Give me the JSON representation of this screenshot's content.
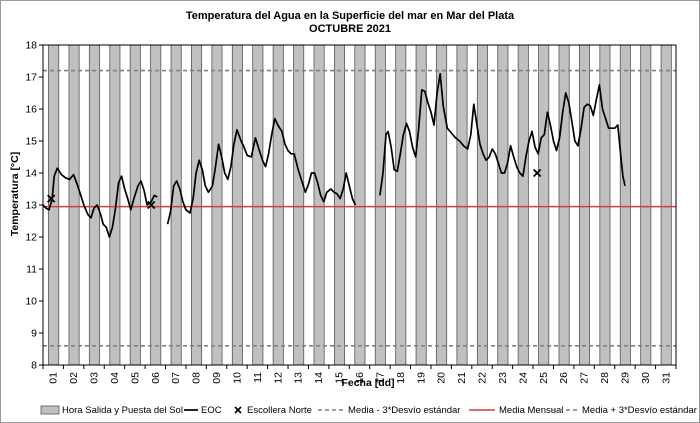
{
  "chart_data": {
    "type": "line",
    "title": "Temperatura del Agua en la Superficie del mar en Mar del Plata",
    "subtitle": "OCTUBRE 2021",
    "xlabel": "Fecha [dd]",
    "ylabel": "Temperatura [°C]",
    "ylim": [
      8,
      18
    ],
    "yticks": [
      "8",
      "9",
      "10",
      "11",
      "12",
      "13",
      "14",
      "15",
      "16",
      "17",
      "18"
    ],
    "xlim": [
      1,
      32
    ],
    "categories": [
      "01",
      "02",
      "03",
      "04",
      "05",
      "06",
      "07",
      "08",
      "09",
      "10",
      "11",
      "12",
      "13",
      "14",
      "15",
      "16",
      "17",
      "18",
      "19",
      "20",
      "21",
      "22",
      "23",
      "24",
      "25",
      "26",
      "27",
      "28",
      "29",
      "30",
      "31"
    ],
    "daylight_bars": {
      "start": 0.27,
      "end": 0.77
    },
    "colors": {
      "eoc": "#000000",
      "media_mensual": "#d04040",
      "desvio": "#808080",
      "daylight_fill": "#c0c0c0",
      "daylight_stroke": "#555555"
    },
    "media_mensual": 12.95,
    "media_minus_3sd": 8.6,
    "media_plus_3sd": 17.2,
    "series": [
      {
        "name": "EOC",
        "segments": [
          [
            [
              1.0,
              13.0
            ],
            [
              1.15,
              12.9
            ],
            [
              1.3,
              12.85
            ],
            [
              1.45,
              13.2
            ],
            [
              1.55,
              13.9
            ],
            [
              1.7,
              14.15
            ],
            [
              1.9,
              13.95
            ],
            [
              2.1,
              13.85
            ],
            [
              2.3,
              13.8
            ],
            [
              2.5,
              13.95
            ],
            [
              2.7,
              13.6
            ],
            [
              2.85,
              13.3
            ],
            [
              3.0,
              13.0
            ],
            [
              3.2,
              12.7
            ],
            [
              3.35,
              12.6
            ],
            [
              3.5,
              12.9
            ],
            [
              3.65,
              13.0
            ],
            [
              3.8,
              12.75
            ],
            [
              3.95,
              12.4
            ],
            [
              4.1,
              12.3
            ],
            [
              4.25,
              12.0
            ],
            [
              4.4,
              12.3
            ],
            [
              4.55,
              12.9
            ],
            [
              4.7,
              13.7
            ],
            [
              4.85,
              13.9
            ],
            [
              5.0,
              13.5
            ],
            [
              5.15,
              13.2
            ],
            [
              5.3,
              12.85
            ],
            [
              5.45,
              13.2
            ],
            [
              5.65,
              13.6
            ],
            [
              5.8,
              13.75
            ],
            [
              5.95,
              13.45
            ],
            [
              6.1,
              13.0
            ],
            [
              6.3,
              13.1
            ],
            [
              6.45,
              13.3
            ],
            [
              6.6,
              13.25
            ]
          ],
          [
            [
              7.1,
              12.4
            ],
            [
              7.25,
              12.8
            ],
            [
              7.4,
              13.6
            ],
            [
              7.55,
              13.75
            ],
            [
              7.7,
              13.5
            ],
            [
              7.85,
              13.1
            ],
            [
              8.0,
              12.85
            ],
            [
              8.2,
              12.75
            ],
            [
              8.35,
              13.2
            ],
            [
              8.5,
              14.0
            ],
            [
              8.65,
              14.4
            ],
            [
              8.8,
              14.1
            ],
            [
              8.95,
              13.6
            ],
            [
              9.1,
              13.4
            ],
            [
              9.3,
              13.6
            ],
            [
              9.45,
              14.2
            ],
            [
              9.6,
              14.9
            ],
            [
              9.75,
              14.5
            ],
            [
              9.9,
              14.0
            ],
            [
              10.05,
              13.8
            ],
            [
              10.2,
              14.2
            ],
            [
              10.35,
              14.9
            ],
            [
              10.5,
              15.35
            ],
            [
              10.7,
              15.0
            ],
            [
              10.85,
              14.8
            ],
            [
              11.0,
              14.55
            ],
            [
              11.2,
              14.5
            ],
            [
              11.4,
              15.1
            ],
            [
              11.6,
              14.7
            ],
            [
              11.75,
              14.4
            ],
            [
              11.9,
              14.2
            ],
            [
              12.05,
              14.6
            ],
            [
              12.2,
              15.2
            ],
            [
              12.35,
              15.7
            ],
            [
              12.5,
              15.5
            ],
            [
              12.7,
              15.3
            ],
            [
              12.85,
              14.9
            ],
            [
              13.0,
              14.7
            ],
            [
              13.15,
              14.6
            ],
            [
              13.3,
              14.6
            ],
            [
              13.5,
              14.1
            ],
            [
              13.7,
              13.7
            ],
            [
              13.85,
              13.4
            ],
            [
              14.0,
              13.65
            ],
            [
              14.15,
              14.0
            ],
            [
              14.3,
              14.0
            ],
            [
              14.45,
              13.7
            ],
            [
              14.6,
              13.3
            ],
            [
              14.75,
              13.1
            ],
            [
              14.9,
              13.4
            ],
            [
              15.1,
              13.5
            ],
            [
              15.25,
              13.4
            ],
            [
              15.4,
              13.35
            ],
            [
              15.55,
              13.2
            ],
            [
              15.7,
              13.5
            ],
            [
              15.85,
              14.0
            ],
            [
              16.0,
              13.6
            ],
            [
              16.15,
              13.2
            ],
            [
              16.3,
              13.0
            ]
          ],
          [
            [
              17.5,
              13.3
            ],
            [
              17.65,
              14.0
            ],
            [
              17.8,
              15.2
            ],
            [
              17.9,
              15.3
            ],
            [
              18.05,
              14.8
            ],
            [
              18.2,
              14.1
            ],
            [
              18.35,
              14.05
            ],
            [
              18.5,
              14.6
            ],
            [
              18.65,
              15.2
            ],
            [
              18.8,
              15.55
            ],
            [
              18.95,
              15.3
            ],
            [
              19.1,
              14.8
            ],
            [
              19.25,
              14.5
            ],
            [
              19.4,
              15.4
            ],
            [
              19.55,
              16.6
            ],
            [
              19.7,
              16.55
            ],
            [
              19.85,
              16.2
            ],
            [
              20.0,
              15.9
            ],
            [
              20.15,
              15.5
            ],
            [
              20.3,
              16.5
            ],
            [
              20.45,
              17.1
            ],
            [
              20.6,
              16.1
            ],
            [
              20.8,
              15.4
            ],
            [
              21.0,
              15.25
            ],
            [
              21.2,
              15.1
            ],
            [
              21.4,
              15.0
            ],
            [
              21.6,
              14.85
            ],
            [
              21.8,
              14.75
            ],
            [
              21.95,
              15.2
            ],
            [
              22.1,
              16.15
            ],
            [
              22.25,
              15.5
            ],
            [
              22.4,
              14.9
            ],
            [
              22.55,
              14.6
            ],
            [
              22.7,
              14.4
            ],
            [
              22.85,
              14.5
            ],
            [
              23.0,
              14.75
            ],
            [
              23.15,
              14.6
            ],
            [
              23.3,
              14.3
            ],
            [
              23.45,
              14.0
            ],
            [
              23.6,
              14.0
            ],
            [
              23.75,
              14.3
            ],
            [
              23.9,
              14.85
            ],
            [
              24.05,
              14.5
            ],
            [
              24.2,
              14.2
            ],
            [
              24.35,
              14.0
            ],
            [
              24.5,
              13.9
            ],
            [
              24.65,
              14.5
            ],
            [
              24.8,
              15.0
            ],
            [
              24.95,
              15.3
            ],
            [
              25.1,
              14.8
            ],
            [
              25.25,
              14.6
            ],
            [
              25.4,
              15.1
            ],
            [
              25.55,
              15.2
            ],
            [
              25.7,
              15.9
            ],
            [
              25.85,
              15.5
            ],
            [
              26.0,
              15.0
            ],
            [
              26.15,
              14.7
            ],
            [
              26.3,
              15.1
            ],
            [
              26.45,
              15.9
            ],
            [
              26.6,
              16.5
            ],
            [
              26.75,
              16.2
            ],
            [
              26.9,
              15.6
            ],
            [
              27.05,
              15.0
            ],
            [
              27.2,
              14.85
            ],
            [
              27.35,
              15.4
            ],
            [
              27.5,
              16.05
            ],
            [
              27.65,
              16.15
            ],
            [
              27.8,
              16.1
            ],
            [
              27.95,
              15.8
            ],
            [
              28.1,
              16.3
            ],
            [
              28.25,
              16.75
            ],
            [
              28.4,
              16.0
            ],
            [
              28.55,
              15.7
            ],
            [
              28.7,
              15.4
            ],
            [
              28.85,
              15.4
            ],
            [
              29.0,
              15.4
            ],
            [
              29.15,
              15.5
            ],
            [
              29.3,
              14.5
            ],
            [
              29.4,
              13.9
            ],
            [
              29.5,
              13.6
            ]
          ]
        ]
      },
      {
        "name": "Escollera Norte",
        "points": [
          [
            1.4,
            13.2
          ],
          [
            6.3,
            13.0
          ],
          [
            25.2,
            14.0
          ]
        ]
      }
    ]
  },
  "legend": [
    {
      "key": "daylight",
      "label": "Hora Salida y Puesta del Sol"
    },
    {
      "key": "eoc",
      "label": "EOC"
    },
    {
      "key": "escollera",
      "label": "Escollera Norte"
    },
    {
      "key": "minus3",
      "label": "Media - 3*Desvío estándar"
    },
    {
      "key": "mensual",
      "label": "Media Mensual"
    },
    {
      "key": "plus3",
      "label": "Media + 3*Desvío estándar"
    }
  ]
}
